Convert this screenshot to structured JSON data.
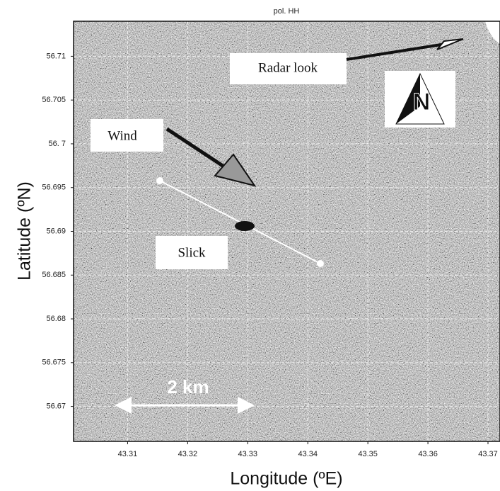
{
  "chart_data": {
    "type": "image",
    "title": "pol. HH",
    "x_label": "Longitude (ºE)",
    "y_label": "Latitude (ºN)",
    "xlim": [
      43.301,
      43.372
    ],
    "ylim": [
      56.666,
      56.714
    ],
    "xticks": [
      43.31,
      43.32,
      43.33,
      43.34,
      43.35,
      43.36,
      43.37
    ],
    "yticks": [
      56.67,
      56.675,
      56.68,
      56.685,
      56.69,
      56.695,
      {
        "value": 56.7,
        "label": "56. 7"
      },
      56.705,
      56.71
    ],
    "grid": true,
    "annotations": {
      "radar": "Radar look",
      "wind": "Wind",
      "slick": "Slick",
      "scale": "2 km"
    }
  }
}
